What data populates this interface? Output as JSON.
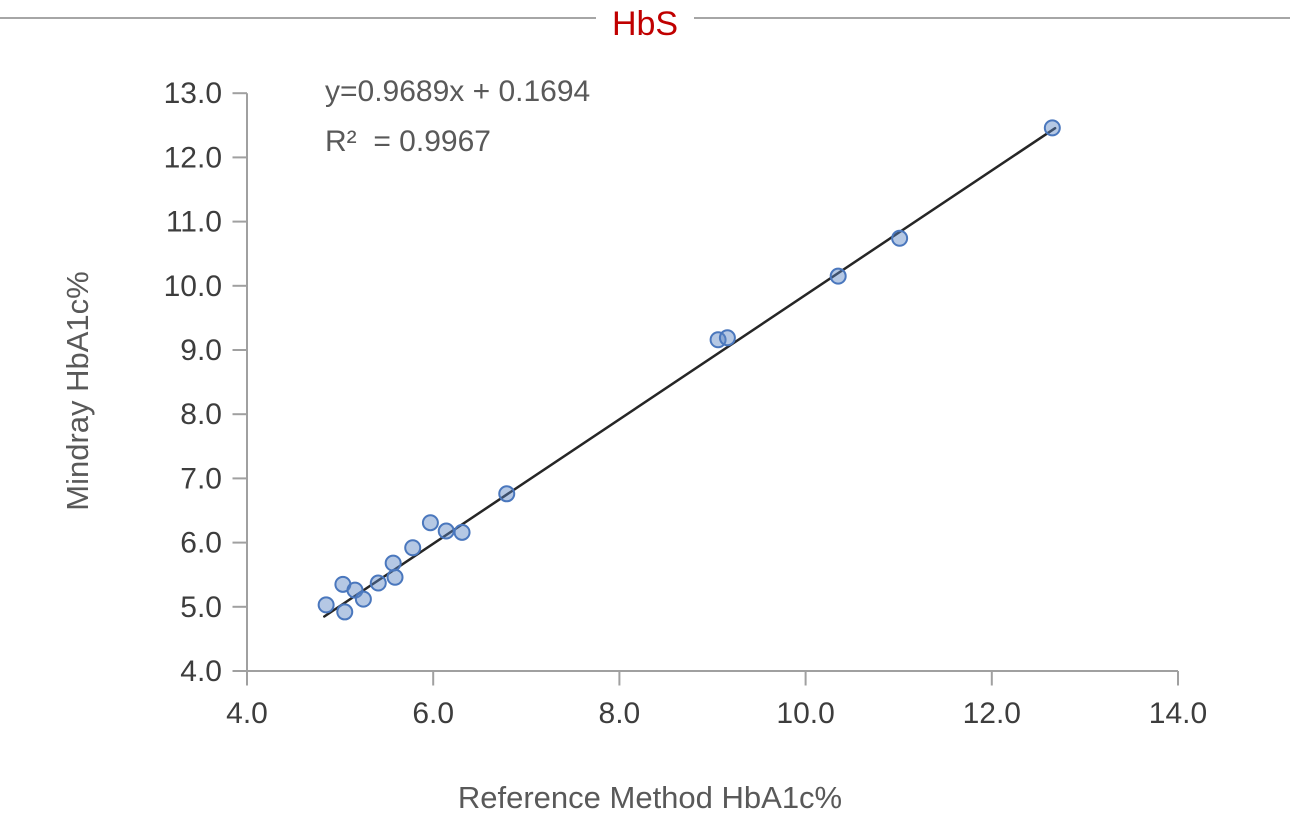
{
  "header": {
    "title": "HbS",
    "title_color": "#c00000",
    "divider_color": "#a6a6a6"
  },
  "chart_data": {
    "type": "scatter",
    "title": "HbS",
    "xlabel": "Reference Method HbA1c%",
    "ylabel": "Mindray HbA1c%",
    "annotations": {
      "equation": "y=0.9689x + 0.1694",
      "r_squared": "R²  = 0.9967"
    },
    "xlim": [
      4.0,
      14.0
    ],
    "ylim": [
      4.0,
      13.0
    ],
    "x_ticks": [
      4.0,
      6.0,
      8.0,
      10.0,
      12.0,
      14.0
    ],
    "y_ticks": [
      4.0,
      5.0,
      6.0,
      7.0,
      8.0,
      9.0,
      10.0,
      11.0,
      12.0,
      13.0
    ],
    "grid": false,
    "legend": "none",
    "points": [
      [
        4.85,
        5.03
      ],
      [
        5.03,
        5.35
      ],
      [
        5.05,
        4.92
      ],
      [
        5.16,
        5.26
      ],
      [
        5.25,
        5.12
      ],
      [
        5.41,
        5.37
      ],
      [
        5.57,
        5.68
      ],
      [
        5.59,
        5.46
      ],
      [
        5.78,
        5.92
      ],
      [
        5.97,
        6.31
      ],
      [
        6.14,
        6.18
      ],
      [
        6.31,
        6.16
      ],
      [
        6.79,
        6.76
      ],
      [
        9.06,
        9.16
      ],
      [
        9.16,
        9.19
      ],
      [
        10.35,
        10.15
      ],
      [
        11.01,
        10.74
      ],
      [
        12.65,
        12.46
      ]
    ],
    "trendline": {
      "slope": 0.9689,
      "intercept": 0.1694,
      "x_start": 4.83,
      "x_end": 12.68,
      "color": "#262626"
    },
    "style": {
      "point_fill": "#5b84c4",
      "point_fill_opacity": 0.45,
      "point_stroke": "#4a77bd",
      "point_radius": 7.5,
      "axis_color": "#a0a0a0",
      "tick_label_color": "#3d3d3d",
      "text_color": "#595959"
    }
  }
}
